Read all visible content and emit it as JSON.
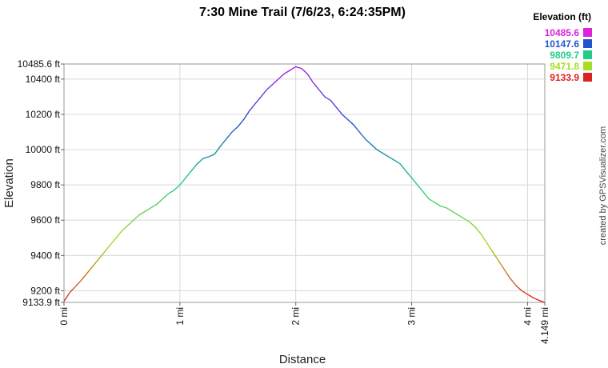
{
  "chart_data": {
    "type": "line",
    "title": "7:30 Mine Trail (7/6/23, 6:24:35PM)",
    "xlabel": "Distance",
    "ylabel": "Elevation",
    "xlim": [
      0,
      4.149
    ],
    "ylim": [
      9133.9,
      10485.6
    ],
    "x_ticks": [
      {
        "value": 0,
        "label": "0 mi"
      },
      {
        "value": 1,
        "label": "1 mi"
      },
      {
        "value": 2,
        "label": "2 mi"
      },
      {
        "value": 3,
        "label": "3 mi"
      },
      {
        "value": 4,
        "label": "4 mi"
      },
      {
        "value": 4.149,
        "label": "4.149 mi"
      }
    ],
    "y_ticks": [
      {
        "value": 9133.9,
        "label": "9133.9 ft"
      },
      {
        "value": 9200,
        "label": "9200 ft"
      },
      {
        "value": 9400,
        "label": "9400 ft"
      },
      {
        "value": 9600,
        "label": "9600 ft"
      },
      {
        "value": 9800,
        "label": "9800 ft"
      },
      {
        "value": 10000,
        "label": "10000 ft"
      },
      {
        "value": 10200,
        "label": "10200 ft"
      },
      {
        "value": 10400,
        "label": "10400 ft"
      },
      {
        "value": 10485.6,
        "label": "10485.6 ft"
      }
    ],
    "grid": true,
    "legend": {
      "title": "Elevation (ft)",
      "placement": "top-right",
      "entries": [
        {
          "label": "10485.6",
          "color": "#dd22dd"
        },
        {
          "label": "10147.6",
          "color": "#2255cc"
        },
        {
          "label": "9809.7",
          "color": "#22cc88"
        },
        {
          "label": "9471.8",
          "color": "#aadd22"
        },
        {
          "label": "9133.9",
          "color": "#dd2222"
        }
      ]
    },
    "series": [
      {
        "x": [
          0,
          0.05,
          0.1,
          0.15,
          0.2,
          0.25,
          0.3,
          0.35,
          0.4,
          0.45,
          0.5,
          0.55,
          0.6,
          0.65,
          0.7,
          0.75,
          0.8,
          0.85,
          0.9,
          0.95,
          1.0,
          1.05,
          1.1,
          1.15,
          1.2,
          1.25,
          1.3,
          1.35,
          1.4,
          1.45,
          1.5,
          1.55,
          1.6,
          1.65,
          1.7,
          1.75,
          1.8,
          1.85,
          1.9,
          1.95,
          2.0,
          2.05,
          2.1,
          2.15,
          2.2,
          2.25,
          2.3,
          2.35,
          2.4,
          2.45,
          2.5,
          2.55,
          2.6,
          2.65,
          2.7,
          2.75,
          2.8,
          2.85,
          2.9,
          2.95,
          3.0,
          3.05,
          3.1,
          3.15,
          3.2,
          3.25,
          3.3,
          3.35,
          3.4,
          3.45,
          3.5,
          3.55,
          3.6,
          3.65,
          3.7,
          3.75,
          3.8,
          3.85,
          3.9,
          3.95,
          4.0,
          4.05,
          4.1,
          4.149
        ],
        "y": [
          9140,
          9190,
          9225,
          9260,
          9300,
          9340,
          9380,
          9420,
          9460,
          9500,
          9540,
          9570,
          9600,
          9630,
          9650,
          9670,
          9690,
          9720,
          9750,
          9770,
          9800,
          9840,
          9880,
          9920,
          9950,
          9960,
          9975,
          10020,
          10060,
          10100,
          10130,
          10170,
          10220,
          10260,
          10300,
          10340,
          10370,
          10400,
          10430,
          10450,
          10470,
          10460,
          10430,
          10380,
          10340,
          10300,
          10280,
          10240,
          10200,
          10170,
          10140,
          10100,
          10060,
          10030,
          10000,
          9980,
          9960,
          9940,
          9920,
          9880,
          9840,
          9800,
          9760,
          9720,
          9700,
          9680,
          9670,
          9650,
          9630,
          9610,
          9590,
          9560,
          9520,
          9470,
          9420,
          9370,
          9320,
          9270,
          9230,
          9200,
          9180,
          9160,
          9145,
          9134
        ]
      }
    ]
  },
  "credit": "created by GPSVisualizer.com"
}
